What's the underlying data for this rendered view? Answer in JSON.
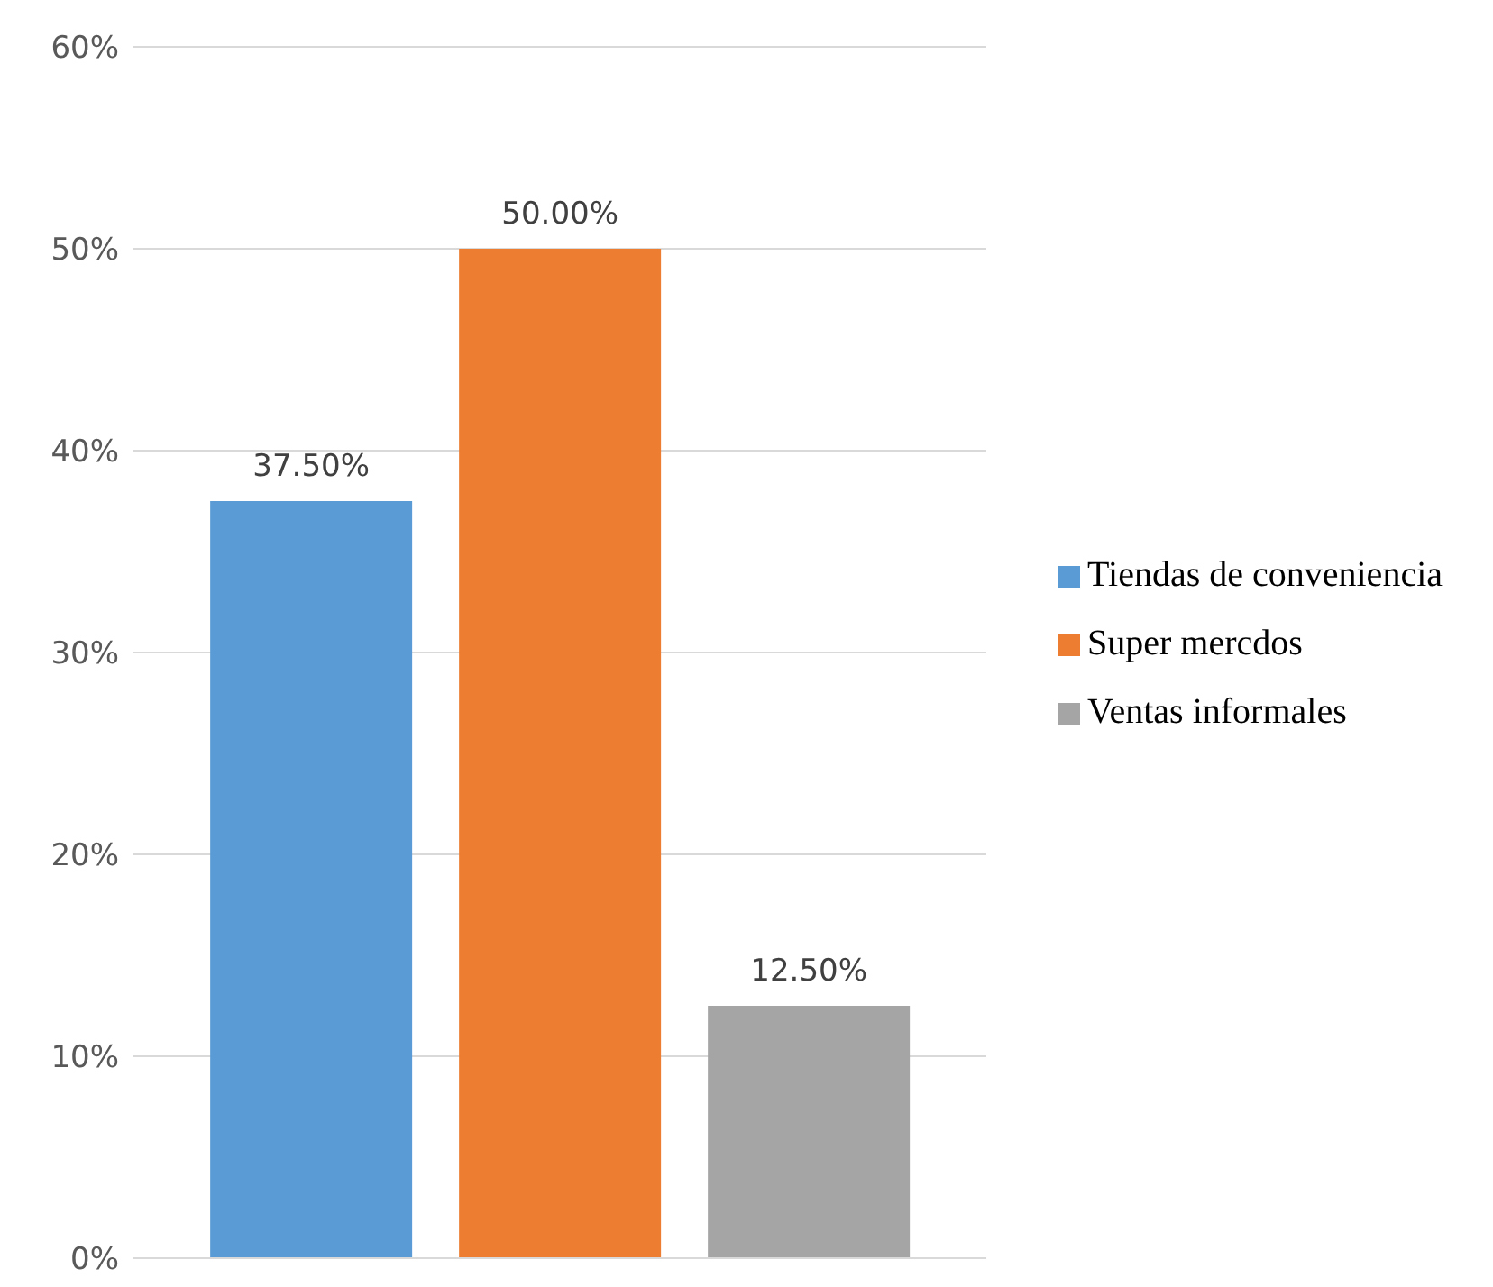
{
  "chart_data": {
    "type": "bar",
    "categories": [
      null
    ],
    "series": [
      {
        "name": "Tiendas de conveniencia",
        "color": "#5b9bd5",
        "values": [
          37.5
        ],
        "value_labels": [
          "37.50%"
        ]
      },
      {
        "name": "Super mercdos",
        "color": "#ed7d31",
        "values": [
          50
        ],
        "value_labels": [
          "50.00%"
        ]
      },
      {
        "name": "Ventas informales",
        "color": "#a5a5a5",
        "values": [
          12.5
        ],
        "value_labels": [
          "12.50%"
        ]
      }
    ],
    "ylim": [
      0,
      60
    ],
    "yticks": [
      {
        "value": 0,
        "label": "0%"
      },
      {
        "value": 10,
        "label": "10%"
      },
      {
        "value": 20,
        "label": "20%"
      },
      {
        "value": 30,
        "label": "30%"
      },
      {
        "value": 40,
        "label": "40%"
      },
      {
        "value": 50,
        "label": "50%"
      },
      {
        "value": 60,
        "label": "60%"
      }
    ],
    "grid": "y",
    "legend": "right"
  }
}
